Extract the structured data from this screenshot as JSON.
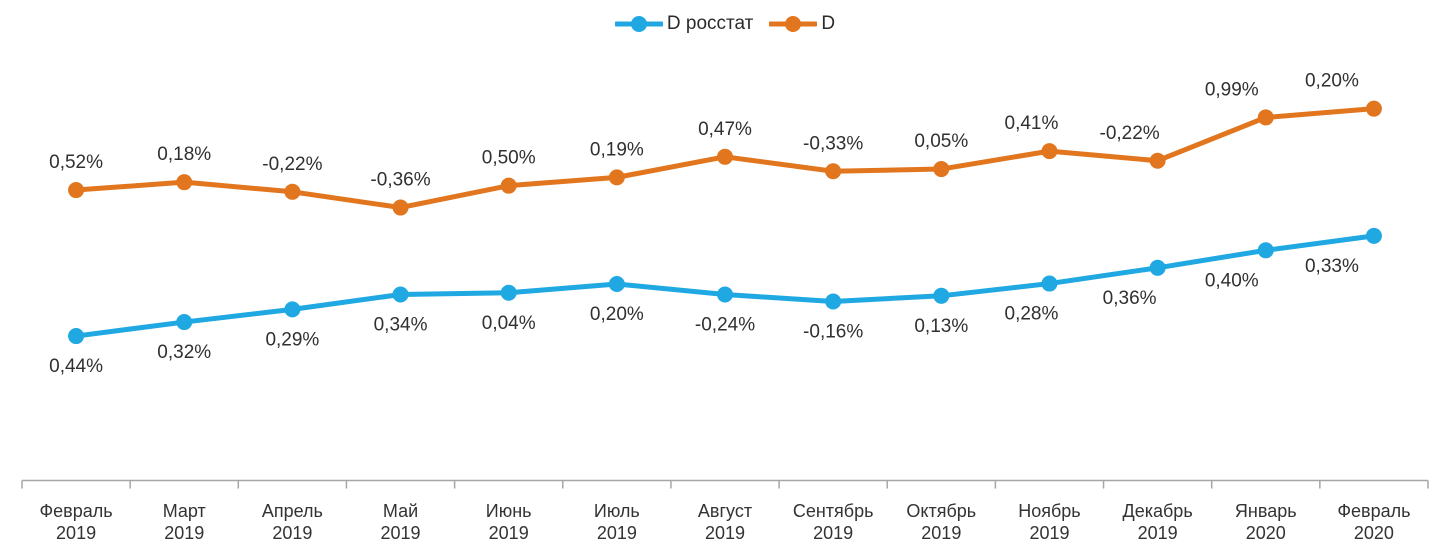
{
  "chart_data": {
    "type": "line",
    "title": "",
    "legend_position": "top-center",
    "grid": false,
    "y_axis_visible": false,
    "x_axis": {
      "line_color": "#a6a6a6",
      "tick_style": "between-categories",
      "label_color": "#333333"
    },
    "plot_note": "lines trace the cumulative running sum of the labeled monthly values",
    "categories": [
      {
        "month": "Февраль",
        "year": "2019"
      },
      {
        "month": "Март",
        "year": "2019"
      },
      {
        "month": "Апрель",
        "year": "2019"
      },
      {
        "month": "Май",
        "year": "2019"
      },
      {
        "month": "Июнь",
        "year": "2019"
      },
      {
        "month": "Июль",
        "year": "2019"
      },
      {
        "month": "Август",
        "year": "2019"
      },
      {
        "month": "Сентябрь",
        "year": "2019"
      },
      {
        "month": "Октябрь",
        "year": "2019"
      },
      {
        "month": "Ноябрь",
        "year": "2019"
      },
      {
        "month": "Декабрь",
        "year": "2019"
      },
      {
        "month": "Январь",
        "year": "2020"
      },
      {
        "month": "Февраль",
        "year": "2020"
      }
    ],
    "series": [
      {
        "name": "D росстат",
        "color": "#1fa8e1",
        "label_position": "below",
        "values": [
          0.44,
          0.32,
          0.29,
          0.34,
          0.04,
          0.2,
          -0.24,
          -0.16,
          0.13,
          0.28,
          0.36,
          0.4,
          0.33
        ],
        "value_labels": [
          "0,44%",
          "0,32%",
          "0,29%",
          "0,34%",
          "0,04%",
          "0,20%",
          "-0,24%",
          "-0,16%",
          "0,13%",
          "0,28%",
          "0,36%",
          "0,40%",
          "0,33%"
        ]
      },
      {
        "name": "D",
        "color": "#e2761e",
        "label_position": "above",
        "values": [
          0.52,
          0.18,
          -0.22,
          -0.36,
          0.5,
          0.19,
          0.47,
          -0.33,
          0.05,
          0.41,
          -0.22,
          0.99,
          0.2
        ],
        "value_labels": [
          "0,52%",
          "0,18%",
          "-0,22%",
          "-0,36%",
          "0,50%",
          "0,19%",
          "0,47%",
          "-0,33%",
          "0,05%",
          "0,41%",
          "-0,22%",
          "0,99%",
          "0,20%"
        ]
      }
    ],
    "value_label_color": "#303030"
  }
}
